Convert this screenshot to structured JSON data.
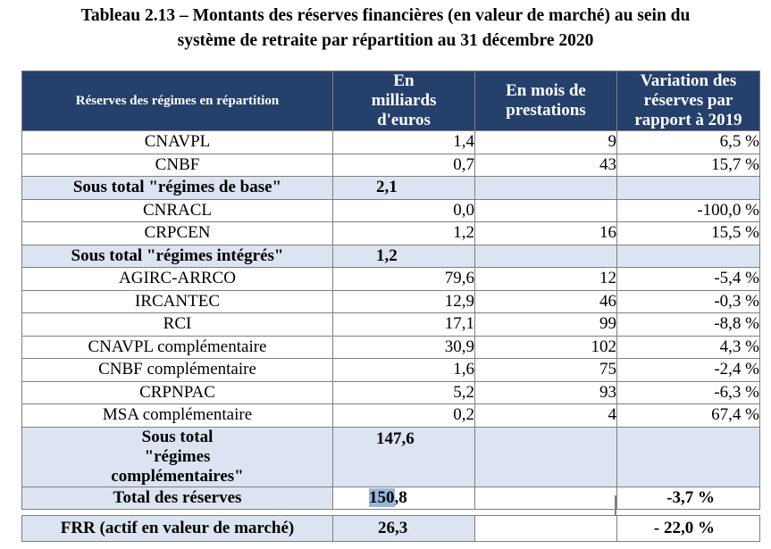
{
  "title_line1": "Tableau 2.13 – Montants des réserves financières (en valeur de marché) au sein du",
  "title_line2": "système de retraite par répartition au 31 décembre 2020",
  "headers": {
    "col1": "Réserves des régimes en répartition",
    "col2": "En milliards d'euros",
    "col3": "En mois de prestations",
    "col4": "Variation des réserves par rapport à 2019"
  },
  "rows": [
    {
      "label": "CNAVPL",
      "amount": "1,4",
      "months": "9",
      "variation": "6,5 %"
    },
    {
      "label": "CNBF",
      "amount": "0,7",
      "months": "43",
      "variation": "15,7 %"
    },
    {
      "label": "Sous total \"régimes de base\"",
      "amount": "2,1",
      "months": "",
      "variation": ""
    },
    {
      "label": "CNRACL",
      "amount": "0,0",
      "months": "",
      "variation": "-100,0 %"
    },
    {
      "label": "CRPCEN",
      "amount": "1,2",
      "months": "16",
      "variation": "15,5 %"
    },
    {
      "label": "Sous total \"régimes intégrés\"",
      "amount": "1,2",
      "months": "",
      "variation": ""
    },
    {
      "label": "AGIRC-ARRCO",
      "amount": "79,6",
      "months": "12",
      "variation": "-5,4 %"
    },
    {
      "label": "IRCANTEC",
      "amount": "12,9",
      "months": "46",
      "variation": "-0,3 %"
    },
    {
      "label": "RCI",
      "amount": "17,1",
      "months": "99",
      "variation": "-8,8 %"
    },
    {
      "label": "CNAVPL complémentaire",
      "amount": "30,9",
      "months": "102",
      "variation": "4,3 %"
    },
    {
      "label": "CNBF complémentaire",
      "amount": "1,6",
      "months": "75",
      "variation": "-2,4 %"
    },
    {
      "label": "CRPNPAC",
      "amount": "5,2",
      "months": "93",
      "variation": "-6,3 %"
    },
    {
      "label": "MSA complémentaire",
      "amount": "0,2",
      "months": "4",
      "variation": "67,4 %"
    },
    {
      "label": "Sous total \"régimes complémentaires\"",
      "amount": "147,6",
      "months": "",
      "variation": ""
    }
  ],
  "total": {
    "label": "Total des réserves",
    "amount_hl": "150",
    "amount_rest": ",8",
    "months": "",
    "variation": "-3,7 %"
  },
  "frr": {
    "label": "FRR (actif en valeur de marché)",
    "amount": "26,3",
    "months": "",
    "variation": "- 22,0 %"
  }
}
